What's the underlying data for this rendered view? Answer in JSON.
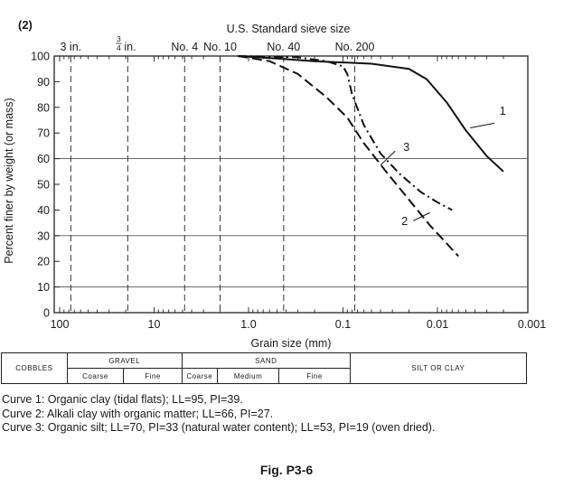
{
  "figure_number": "(2)",
  "top_axis_title": "U.S. Standard sieve size",
  "sieve_labels": [
    {
      "text": "3 in.",
      "d": 76.2
    },
    {
      "text_num": "3",
      "text_den": "4",
      "text": "in.",
      "d": 19.0
    },
    {
      "text": "No. 4",
      "d": 4.75
    },
    {
      "text": "No. 10",
      "d": 2.0
    },
    {
      "text": "No. 40",
      "d": 0.425
    },
    {
      "text": "No. 200",
      "d": 0.075
    }
  ],
  "ylabel": "Percent finer by weight (or mass)",
  "xlabel": "Grain size (mm)",
  "chart_data": {
    "type": "line",
    "xscale": "log",
    "xreversed": true,
    "xlim": [
      120,
      0.001
    ],
    "ylim": [
      0,
      100
    ],
    "xticks": [
      100,
      10,
      1.0,
      0.1,
      0.01,
      0.001
    ],
    "xtick_labels": [
      "100",
      "10",
      "1.0",
      "0.1",
      "0.01",
      "0.001"
    ],
    "yticks": [
      0,
      10,
      20,
      30,
      40,
      50,
      60,
      70,
      80,
      90,
      100
    ],
    "horizontal_grid": [
      10,
      30,
      60
    ],
    "series": [
      {
        "name": "1",
        "style": "solid",
        "points": [
          [
            1.3,
            100
          ],
          [
            0.5,
            99
          ],
          [
            0.2,
            98
          ],
          [
            0.05,
            97
          ],
          [
            0.02,
            95
          ],
          [
            0.013,
            91
          ],
          [
            0.008,
            82
          ],
          [
            0.005,
            71
          ],
          [
            0.003,
            61
          ],
          [
            0.002,
            55
          ]
        ]
      },
      {
        "name": "2",
        "style": "dashed",
        "points": [
          [
            1.3,
            100
          ],
          [
            0.6,
            98
          ],
          [
            0.3,
            93
          ],
          [
            0.15,
            84
          ],
          [
            0.09,
            76
          ],
          [
            0.06,
            66
          ],
          [
            0.035,
            55
          ],
          [
            0.02,
            44
          ],
          [
            0.012,
            34
          ],
          [
            0.008,
            27
          ],
          [
            0.006,
            22
          ]
        ]
      },
      {
        "name": "3",
        "style": "dashdot",
        "points": [
          [
            1.3,
            100
          ],
          [
            0.3,
            99.5
          ],
          [
            0.15,
            98
          ],
          [
            0.1,
            96
          ],
          [
            0.09,
            93
          ],
          [
            0.08,
            85
          ],
          [
            0.06,
            73
          ],
          [
            0.04,
            62
          ],
          [
            0.025,
            54
          ],
          [
            0.015,
            47
          ],
          [
            0.01,
            43
          ],
          [
            0.007,
            40
          ]
        ]
      }
    ],
    "curve_labels": [
      "1",
      "2",
      "3"
    ]
  },
  "classification": {
    "cobbles": "COBBLES",
    "gravel": "GRAVEL",
    "gravel_coarse": "Coarse",
    "gravel_fine": "Fine",
    "sand": "SAND",
    "sand_coarse": "Coarse",
    "sand_medium": "Medium",
    "sand_fine": "Fine",
    "silt_clay": "SILT OR CLAY"
  },
  "captions": [
    "Curve 1:  Organic clay (tidal flats);  LL=95, PI=39.",
    "Curve 2:  Alkali clay with organic matter;  LL=66, PI=27.",
    "Curve 3:  Organic silt;  LL=70, PI=33 (natural water content); LL=53, PI=19 (oven dried)."
  ],
  "fig_label": "Fig. P3-6"
}
